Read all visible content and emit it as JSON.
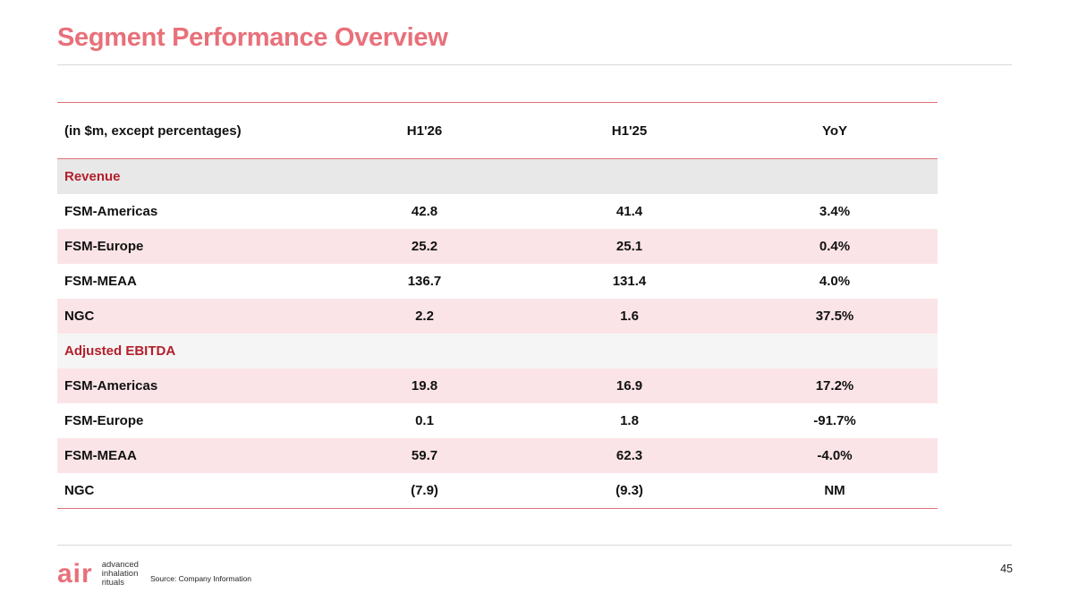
{
  "slide": {
    "title": "Segment Performance Overview",
    "page_number": "45",
    "source": "Source: Company Information"
  },
  "logo": {
    "word": "air",
    "tagline": [
      "advanced",
      "inhalation",
      "rituals"
    ]
  },
  "table": {
    "headers": [
      "(in $m, except percentages)",
      "H1'26",
      "H1'25",
      "YoY"
    ],
    "revenue": {
      "label": "Revenue",
      "rows": [
        {
          "name": "FSM-Americas",
          "h1_26": "42.8",
          "h1_25": "41.4",
          "yoy": "3.4%"
        },
        {
          "name": "FSM-Europe",
          "h1_26": "25.2",
          "h1_25": "25.1",
          "yoy": "0.4%"
        },
        {
          "name": "FSM-MEAA",
          "h1_26": "136.7",
          "h1_25": "131.4",
          "yoy": "4.0%"
        },
        {
          "name": "NGC",
          "h1_26": "2.2",
          "h1_25": "1.6",
          "yoy": "37.5%"
        }
      ]
    },
    "adjusted_ebitda": {
      "label": "Adjusted EBITDA",
      "rows": [
        {
          "name": "FSM-Americas",
          "h1_26": "19.8",
          "h1_25": "16.9",
          "yoy": "17.2%"
        },
        {
          "name": "FSM-Europe",
          "h1_26": "0.1",
          "h1_25": "1.8",
          "yoy": "-91.7%"
        },
        {
          "name": "FSM-MEAA",
          "h1_26": "59.7",
          "h1_25": "62.3",
          "yoy": "-4.0%"
        },
        {
          "name": "NGC",
          "h1_26": "(7.9)",
          "h1_25": "(9.3)",
          "yoy": "NM"
        }
      ]
    }
  },
  "colors": {
    "accent": "#e8707a",
    "section_label": "#b3202c",
    "stripe_pink": "#fbe4e7",
    "section_grey": "#e8e8e8"
  }
}
